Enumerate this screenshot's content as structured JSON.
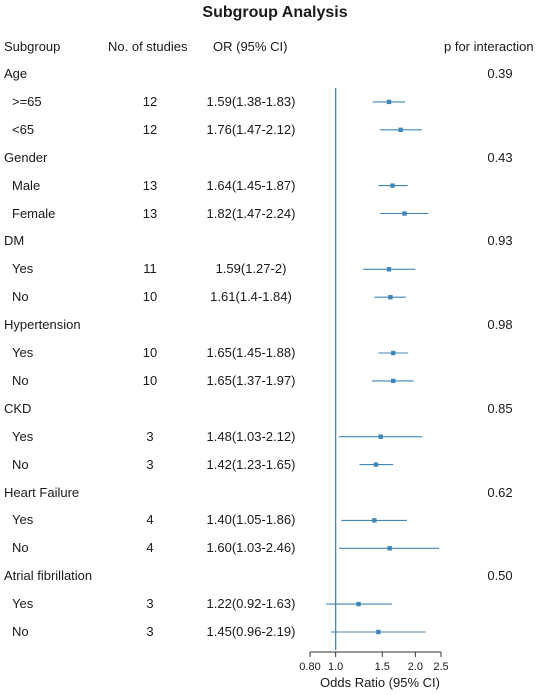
{
  "chart_data": {
    "type": "forest",
    "title": "Subgroup Analysis",
    "columns": {
      "subgroup": "Subgroup",
      "n": "No. of studies",
      "or": "OR (95% CI)",
      "p": "p for interaction"
    },
    "xlabel": "Odds Ratio (95% CI)",
    "x_scale": "log",
    "xlim": [
      0.8,
      2.5
    ],
    "x_ticks": [
      0.8,
      1.0,
      1.5,
      2.0,
      2.5
    ],
    "x_tick_labels": [
      "0.80",
      "1.0",
      "1.5",
      "2.0",
      "2.5"
    ],
    "reference_line": 1.0,
    "color": "#3f87b8",
    "rows": [
      {
        "label": "Age",
        "header": true,
        "p": "0.39"
      },
      {
        "label": ">=65",
        "n": "12",
        "ci_text": "1.59(1.38-1.83)",
        "or": 1.59,
        "low": 1.38,
        "high": 1.83
      },
      {
        "label": "<65",
        "n": "12",
        "ci_text": "1.76(1.47-2.12)",
        "or": 1.76,
        "low": 1.47,
        "high": 2.12
      },
      {
        "label": "Gender",
        "header": true,
        "p": "0.43"
      },
      {
        "label": "Male",
        "n": "13",
        "ci_text": "1.64(1.45-1.87)",
        "or": 1.64,
        "low": 1.45,
        "high": 1.87
      },
      {
        "label": "Female",
        "n": "13",
        "ci_text": "1.82(1.47-2.24)",
        "or": 1.82,
        "low": 1.47,
        "high": 2.24
      },
      {
        "label": "DM",
        "header": true,
        "p": "0.93"
      },
      {
        "label": "Yes",
        "n": "11",
        "ci_text": "1.59(1.27-2)",
        "or": 1.59,
        "low": 1.27,
        "high": 2.0
      },
      {
        "label": "No",
        "n": "10",
        "ci_text": "1.61(1.4-1.84)",
        "or": 1.61,
        "low": 1.4,
        "high": 1.84
      },
      {
        "label": "Hypertension",
        "header": true,
        "p": "0.98"
      },
      {
        "label": "Yes",
        "n": "10",
        "ci_text": "1.65(1.45-1.88)",
        "or": 1.65,
        "low": 1.45,
        "high": 1.88
      },
      {
        "label": "No",
        "n": "10",
        "ci_text": "1.65(1.37-1.97)",
        "or": 1.65,
        "low": 1.37,
        "high": 1.97
      },
      {
        "label": "CKD",
        "header": true,
        "p": "0.85"
      },
      {
        "label": "Yes",
        "n": "3",
        "ci_text": "1.48(1.03-2.12)",
        "or": 1.48,
        "low": 1.03,
        "high": 2.12
      },
      {
        "label": "No",
        "n": "3",
        "ci_text": "1.42(1.23-1.65)",
        "or": 1.42,
        "low": 1.23,
        "high": 1.65
      },
      {
        "label": "Heart Failure",
        "header": true,
        "p": "0.62"
      },
      {
        "label": "Yes",
        "n": "4",
        "ci_text": "1.40(1.05-1.86)",
        "or": 1.4,
        "low": 1.05,
        "high": 1.86
      },
      {
        "label": "No",
        "n": "4",
        "ci_text": "1.60(1.03-2.46)",
        "or": 1.6,
        "low": 1.03,
        "high": 2.46
      },
      {
        "label": "Atrial fibrillation",
        "header": true,
        "p": "0.50"
      },
      {
        "label": "Yes",
        "n": "3",
        "ci_text": "1.22(0.92-1.63)",
        "or": 1.22,
        "low": 0.92,
        "high": 1.63
      },
      {
        "label": "No",
        "n": "3",
        "ci_text": "1.45(0.96-2.19)",
        "or": 1.45,
        "low": 0.96,
        "high": 2.19
      }
    ]
  }
}
